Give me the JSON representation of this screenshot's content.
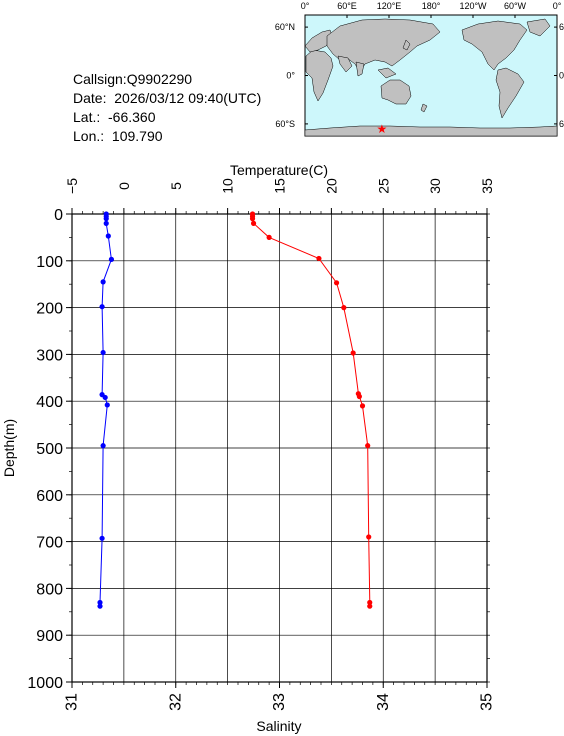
{
  "station": {
    "callsign": "Callsign:Q9902290",
    "date": "Date:  2026/03/12 09:40(UTC)",
    "lat": "Lat.:  -66.360",
    "lon": "Lon.:  109.790"
  },
  "map": {
    "lon_labels": [
      "0°",
      "60°E",
      "120°E",
      "180°",
      "120°W",
      "60°W",
      "0°"
    ],
    "lat_labels": [
      "60°N",
      "0°",
      "60°S"
    ],
    "marker": {
      "lat": -66.36,
      "lon": 109.79
    },
    "colors": {
      "ocean": "#cdf7fb",
      "land": "#c0c0c0",
      "marker": "#ff0000"
    }
  },
  "chart_data": {
    "type": "line",
    "ylabel": "Depth(m)",
    "ylim": [
      0,
      1000
    ],
    "yticks": [
      "0",
      "100",
      "200",
      "300",
      "400",
      "500",
      "600",
      "700",
      "800",
      "900",
      "1000"
    ],
    "grid": true,
    "top_axis": {
      "label": "Temperature(C)",
      "lim": [
        -5,
        35
      ],
      "ticks": [
        "−5",
        "0",
        "5",
        "10",
        "15",
        "20",
        "25",
        "30",
        "35"
      ]
    },
    "bottom_axis": {
      "label": "Salinity",
      "lim": [
        31,
        35
      ],
      "ticks": [
        "31",
        "32",
        "33",
        "34",
        "35"
      ]
    },
    "series": [
      {
        "axis": "top",
        "color": "#ff0000",
        "points": [
          [
            12.4,
            0
          ],
          [
            12.4,
            5
          ],
          [
            12.4,
            10
          ],
          [
            12.5,
            20
          ],
          [
            14.0,
            50
          ],
          [
            18.8,
            95
          ],
          [
            20.5,
            147
          ],
          [
            21.2,
            200
          ],
          [
            22.1,
            297
          ],
          [
            22.6,
            384
          ],
          [
            22.7,
            390
          ],
          [
            23.0,
            410
          ],
          [
            23.5,
            495
          ],
          [
            23.6,
            690
          ],
          [
            23.7,
            830
          ],
          [
            23.7,
            838
          ]
        ]
      },
      {
        "axis": "bottom",
        "color": "#0000ff",
        "points": [
          [
            31.33,
            0
          ],
          [
            31.33,
            5
          ],
          [
            31.33,
            10
          ],
          [
            31.33,
            20
          ],
          [
            31.35,
            47
          ],
          [
            31.38,
            97
          ],
          [
            31.3,
            145
          ],
          [
            31.29,
            198
          ],
          [
            31.3,
            296
          ],
          [
            31.29,
            386
          ],
          [
            31.32,
            392
          ],
          [
            31.34,
            408
          ],
          [
            31.3,
            495
          ],
          [
            31.29,
            693
          ],
          [
            31.27,
            830
          ],
          [
            31.27,
            838
          ]
        ]
      }
    ]
  }
}
